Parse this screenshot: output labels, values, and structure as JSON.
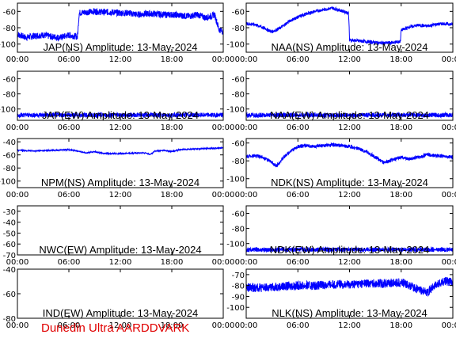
{
  "footer_text": "Dunedin Ultra AARDDVARK",
  "colors": {
    "trace": "#0000ff",
    "axes": "#000000",
    "footer": "#e00000"
  },
  "x_ticks": [
    "00:00",
    "06:00",
    "12:00",
    "18:00",
    "00:00"
  ],
  "chart_data": [
    {
      "type": "line",
      "title": "JAP(NS) Amplitude: 13-May-2024",
      "xlim": [
        0,
        24
      ],
      "ylim": [
        -110,
        -50
      ],
      "yticks": [
        -100,
        -80,
        -60
      ],
      "series": [
        {
          "x": [
            0,
            1,
            2,
            3,
            4,
            5,
            6,
            7,
            7.2,
            8,
            9,
            10,
            11,
            12,
            13,
            14,
            15,
            16,
            17,
            18,
            19,
            20,
            21,
            22,
            22.5,
            23,
            23.5,
            24
          ],
          "y": [
            -88,
            -92,
            -90,
            -89,
            -91,
            -92,
            -89,
            -91,
            -62,
            -61,
            -60,
            -61,
            -61,
            -62,
            -62,
            -64,
            -63,
            -63,
            -64,
            -64,
            -65,
            -66,
            -64,
            -68,
            -66,
            -64,
            -82,
            -85
          ],
          "noise": 4
        }
      ]
    },
    {
      "type": "line",
      "title": "NAA(NS) Amplitude: 13-May-2024",
      "xlim": [
        0,
        24
      ],
      "ylim": [
        -110,
        -50
      ],
      "yticks": [
        -100,
        -80,
        -60
      ],
      "series": [
        {
          "x": [
            0,
            1,
            2,
            3,
            4,
            5,
            6,
            7,
            8,
            9,
            10,
            11,
            11.9,
            12,
            13,
            14,
            15,
            16,
            17,
            17.9,
            18,
            19,
            20,
            21,
            22,
            23,
            24
          ],
          "y": [
            -75,
            -76,
            -80,
            -85,
            -80,
            -72,
            -67,
            -63,
            -60,
            -58,
            -56,
            -59,
            -62,
            -95,
            -96,
            -97,
            -98,
            -99,
            -98,
            -97,
            -83,
            -79,
            -77,
            -78,
            -76,
            -75,
            -76
          ],
          "noise": 2
        }
      ]
    },
    {
      "type": "line",
      "title": "JAP(EW) Amplitude: 13-May-2024",
      "xlim": [
        0,
        24
      ],
      "ylim": [
        -115,
        -50
      ],
      "yticks": [
        -100,
        -80,
        -60
      ],
      "series": [
        {
          "x": [
            0,
            6,
            12,
            18,
            24
          ],
          "y": [
            -108,
            -108,
            -108,
            -108,
            -108
          ],
          "noise": 3
        }
      ]
    },
    {
      "type": "line",
      "title": "NAA(EW) Amplitude: 13-May-2024",
      "xlim": [
        0,
        24
      ],
      "ylim": [
        -115,
        -50
      ],
      "yticks": [
        -100,
        -80,
        -60
      ],
      "series": [
        {
          "x": [
            0,
            6,
            12,
            18,
            24
          ],
          "y": [
            -108,
            -108,
            -108,
            -108,
            -108
          ],
          "noise": 3
        }
      ]
    },
    {
      "type": "line",
      "title": "NPM(NS) Amplitude: 13-May-2024",
      "xlim": [
        0,
        24
      ],
      "ylim": [
        -110,
        -35
      ],
      "yticks": [
        -100,
        -80,
        -60,
        -40
      ],
      "series": [
        {
          "x": [
            0,
            2,
            4,
            6,
            7,
            8,
            9,
            10,
            12,
            14,
            15,
            15.5,
            16,
            17,
            18,
            19,
            20,
            21,
            22,
            23,
            24
          ],
          "y": [
            -53,
            -54,
            -53,
            -52,
            -54,
            -57,
            -55,
            -58,
            -58,
            -57,
            -57,
            -60,
            -54,
            -53,
            -55,
            -52,
            -51,
            -51,
            -50,
            -50,
            -49
          ],
          "noise": 1
        }
      ]
    },
    {
      "type": "line",
      "title": "NDK(NS) Amplitude: 13-May-2024",
      "xlim": [
        0,
        24
      ],
      "ylim": [
        -110,
        -55
      ],
      "yticks": [
        -100,
        -80,
        -60
      ],
      "series": [
        {
          "x": [
            0,
            1,
            2,
            3,
            3.5,
            4,
            5,
            6,
            7,
            8,
            9,
            10,
            11,
            12,
            13,
            14,
            15,
            16,
            17,
            18,
            19,
            20,
            21,
            22,
            23,
            24
          ],
          "y": [
            -75,
            -74,
            -76,
            -82,
            -86,
            -80,
            -70,
            -64,
            -63,
            -64,
            -63,
            -62,
            -63,
            -64,
            -66,
            -70,
            -76,
            -82,
            -79,
            -76,
            -78,
            -76,
            -73,
            -74,
            -75,
            -76
          ],
          "noise": 2
        }
      ]
    },
    {
      "type": "line",
      "title": "NWC(EW) Amplitude: 13-May-2024",
      "xlim": [
        0,
        24
      ],
      "ylim": [
        -70,
        -25
      ],
      "yticks": [
        -70,
        -60,
        -50,
        -40,
        -30
      ],
      "series": []
    },
    {
      "type": "line",
      "title": "NDK(EW) Amplitude: 13-May-2024",
      "xlim": [
        0,
        24
      ],
      "ylim": [
        -115,
        -50
      ],
      "yticks": [
        -100,
        -80,
        -60
      ],
      "series": [
        {
          "x": [
            0,
            6,
            12,
            18,
            24
          ],
          "y": [
            -108,
            -108,
            -108,
            -108,
            -108
          ],
          "noise": 3
        }
      ]
    },
    {
      "type": "line",
      "title": "IND(EW) Amplitude: 13-May-2024",
      "xlim": [
        0,
        24
      ],
      "ylim": [
        -80,
        -40
      ],
      "yticks": [
        -80,
        -60,
        -40
      ],
      "series": []
    },
    {
      "type": "line",
      "title": "NLK(NS) Amplitude: 13-May-2024",
      "xlim": [
        0,
        24
      ],
      "ylim": [
        -110,
        -65
      ],
      "yticks": [
        -100,
        -90,
        -80,
        -70
      ],
      "series": [
        {
          "x": [
            0,
            2,
            4,
            6,
            8,
            10,
            12,
            14,
            16,
            18,
            19,
            20,
            21,
            22,
            23,
            24
          ],
          "y": [
            -82,
            -82,
            -81,
            -80,
            -80,
            -79,
            -79,
            -78,
            -78,
            -77,
            -80,
            -84,
            -86,
            -80,
            -76,
            -77
          ],
          "noise": 4
        }
      ]
    }
  ]
}
